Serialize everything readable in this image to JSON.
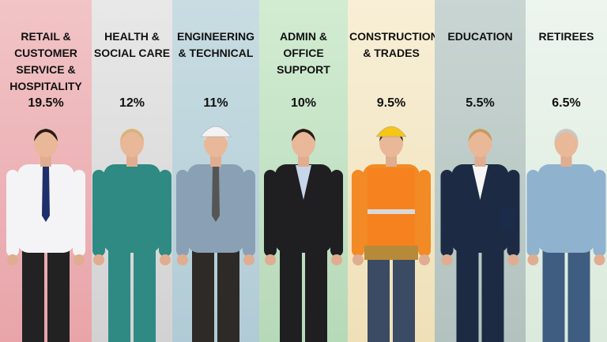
{
  "columns": [
    {
      "label": "RETAIL & CUSTOMER SERVICE & HOSPITALITY",
      "share": "19.5%"
    },
    {
      "label": "HEALTH & SOCIAL CARE",
      "share": "12%"
    },
    {
      "label": "ENGINEERING & TECHNICAL",
      "share": "11%"
    },
    {
      "label": "ADMIN & OFFICE SUPPORT",
      "share": "10%"
    },
    {
      "label": "CONSTRUCTION & TRADES",
      "share": "9.5%"
    },
    {
      "label": "EDUCATION",
      "share": "5.5%"
    },
    {
      "label": "RETIREES",
      "share": "6.5%"
    }
  ]
}
